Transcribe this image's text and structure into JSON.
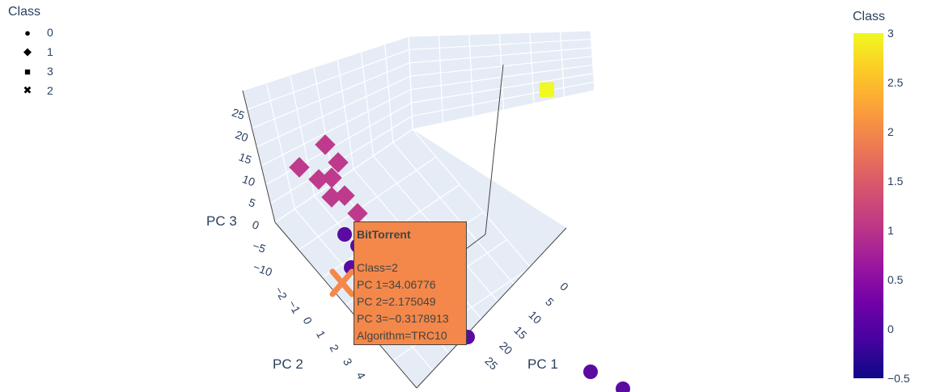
{
  "legend": {
    "title": "Class",
    "items": [
      {
        "label": "0",
        "symbol": "●"
      },
      {
        "label": "1",
        "symbol": "◆"
      },
      {
        "label": "3",
        "symbol": "■"
      },
      {
        "label": "2",
        "symbol": "✖"
      }
    ]
  },
  "colorbar": {
    "title": "Class",
    "min": -0.5,
    "max": 3,
    "ticks": [
      "3",
      "2.5",
      "2",
      "1.5",
      "1",
      "0.5",
      "0",
      "−0.5"
    ]
  },
  "tooltip": {
    "title": "BitTorrent",
    "lines": [
      "Class=2",
      "PC 1=34.06776",
      "PC 2=2.175049",
      "PC 3=−0.3178913",
      "Algorithm=TRC10"
    ]
  },
  "chart_data": {
    "type": "scatter3d",
    "xlabel": "PC 1",
    "ylabel": "PC 2",
    "zlabel": "PC 3",
    "x_ticks": [
      "0",
      "5",
      "10",
      "15",
      "20",
      "25"
    ],
    "y_ticks": [
      "−2",
      "−1",
      "0",
      "1",
      "2",
      "3",
      "4"
    ],
    "z_ticks": [
      "−10",
      "−5",
      "0",
      "5",
      "10",
      "15",
      "20",
      "25"
    ],
    "color_scale": [
      "#0d0887",
      "#46039f",
      "#7201a8",
      "#9c179e",
      "#bd3786",
      "#d8576b",
      "#ed7953",
      "#fb9f3a",
      "#fdca26",
      "#f0f921"
    ],
    "series": [
      {
        "name": "0",
        "class": 0,
        "color": "#5a0ba0",
        "points": [
          {
            "x": 1,
            "y": -1,
            "z": 6
          },
          {
            "x": 2,
            "y": -1,
            "z": 5
          },
          {
            "x": 3,
            "y": -1,
            "z": 4
          },
          {
            "x": 4,
            "y": -1,
            "z": 4
          },
          {
            "x": 5,
            "y": -1,
            "z": 3
          },
          {
            "x": 1,
            "y": 0,
            "z": 5
          },
          {
            "x": 2,
            "y": 0,
            "z": 4
          },
          {
            "x": 6,
            "y": -1,
            "z": 3
          },
          {
            "x": 3,
            "y": 0,
            "z": 3
          },
          {
            "x": 7,
            "y": -1,
            "z": 8
          },
          {
            "x": 4,
            "y": 0,
            "z": 2
          },
          {
            "x": 10,
            "y": -1,
            "z": 2
          },
          {
            "x": 22,
            "y": -1,
            "z": 3
          },
          {
            "x": 20,
            "y": 0,
            "z": -2
          }
        ]
      },
      {
        "name": "1",
        "class": 1,
        "color": "#be3a8c",
        "points": [
          {
            "x": -1,
            "y": 0,
            "z": 12
          },
          {
            "x": 0,
            "y": 0,
            "z": 13
          },
          {
            "x": 0,
            "y": 1,
            "z": 12
          },
          {
            "x": 1,
            "y": 0,
            "z": 11
          },
          {
            "x": 1,
            "y": 1,
            "z": 10
          },
          {
            "x": -2,
            "y": 1,
            "z": 7
          },
          {
            "x": 2,
            "y": 0,
            "z": 9
          },
          {
            "x": 0,
            "y": 0,
            "z": 10
          }
        ]
      },
      {
        "name": "3",
        "class": 3,
        "color": "#f0f921",
        "points": [
          {
            "x": 15,
            "y": -2,
            "z": 25
          }
        ]
      },
      {
        "name": "2",
        "class": 2,
        "color": "#f3884a",
        "points": [
          {
            "x": 34.06776,
            "y": 2.175049,
            "z": -0.3178913
          }
        ]
      }
    ]
  }
}
